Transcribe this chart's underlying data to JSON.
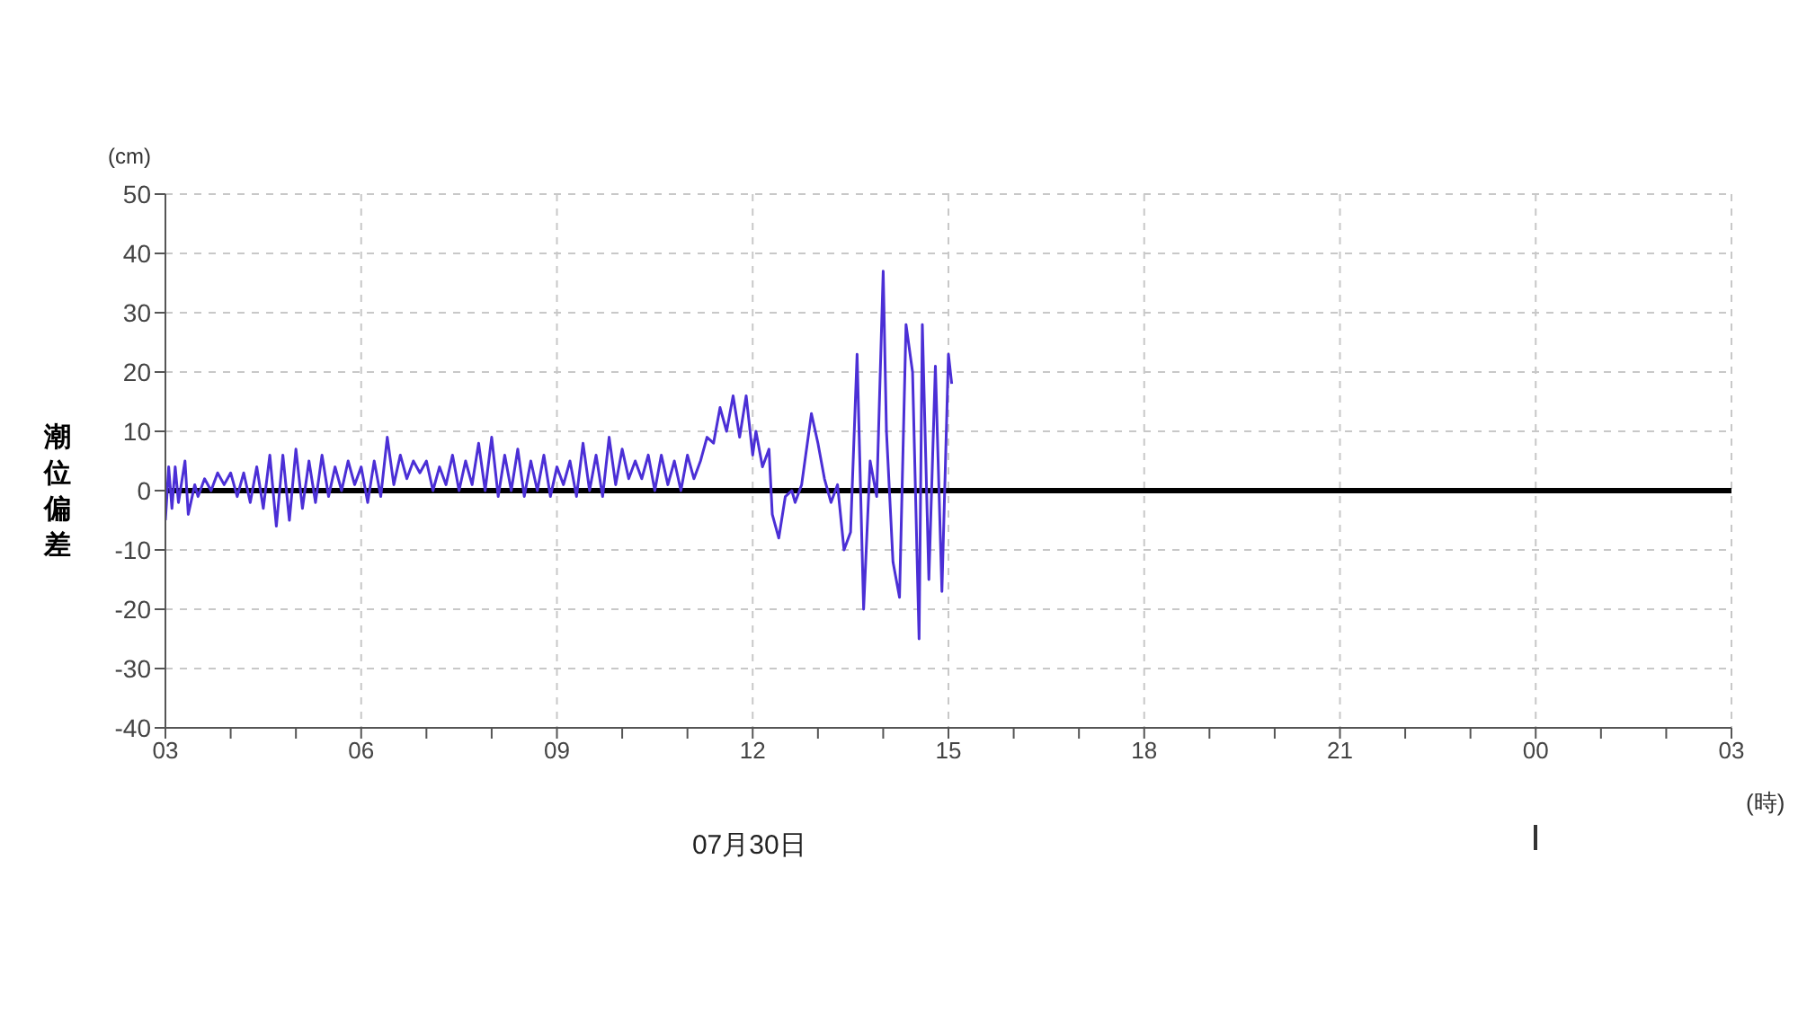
{
  "chart_data": {
    "type": "line",
    "ylabel": "潮位偏差",
    "xlabel": "(時)",
    "annotations": [
      "(cm)",
      "07月30日"
    ],
    "x": [
      3.0,
      3.05,
      3.1,
      3.15,
      3.2,
      3.3,
      3.35,
      3.45,
      3.5,
      3.6,
      3.7,
      3.8,
      3.9,
      4.0,
      4.1,
      4.2,
      4.3,
      4.4,
      4.5,
      4.6,
      4.7,
      4.8,
      4.9,
      5.0,
      5.1,
      5.2,
      5.3,
      5.4,
      5.5,
      5.6,
      5.7,
      5.8,
      5.9,
      6.0,
      6.1,
      6.2,
      6.3,
      6.4,
      6.5,
      6.6,
      6.7,
      6.8,
      6.9,
      7.0,
      7.1,
      7.2,
      7.3,
      7.4,
      7.5,
      7.6,
      7.7,
      7.8,
      7.9,
      8.0,
      8.1,
      8.2,
      8.3,
      8.4,
      8.5,
      8.6,
      8.7,
      8.8,
      8.9,
      9.0,
      9.1,
      9.2,
      9.3,
      9.4,
      9.5,
      9.6,
      9.7,
      9.8,
      9.9,
      10.0,
      10.1,
      10.2,
      10.3,
      10.4,
      10.5,
      10.6,
      10.7,
      10.8,
      10.9,
      11.0,
      11.1,
      11.2,
      11.3,
      11.4,
      11.5,
      11.6,
      11.7,
      11.8,
      11.9,
      12.0,
      12.05,
      12.15,
      12.25,
      12.3,
      12.4,
      12.5,
      12.6,
      12.65,
      12.75,
      12.9,
      13.0,
      13.1,
      13.2,
      13.3,
      13.4,
      13.5,
      13.6,
      13.7,
      13.8,
      13.9,
      14.0,
      14.05,
      14.15,
      14.25,
      14.35,
      14.45,
      14.55,
      14.6,
      14.7,
      14.8,
      14.9,
      15.0,
      15.05
    ],
    "series": [
      {
        "color": "#4b2fd6",
        "values": [
          -5,
          4,
          -3,
          4,
          -2,
          5,
          -4,
          1,
          -1,
          2,
          0,
          3,
          1,
          3,
          -1,
          3,
          -2,
          4,
          -3,
          6,
          -6,
          6,
          -5,
          7,
          -3,
          5,
          -2,
          6,
          -1,
          4,
          0,
          5,
          1,
          4,
          -2,
          5,
          -1,
          9,
          1,
          6,
          2,
          5,
          3,
          5,
          0,
          4,
          1,
          6,
          0,
          5,
          1,
          8,
          0,
          9,
          -1,
          6,
          0,
          7,
          -1,
          5,
          0,
          6,
          -1,
          4,
          1,
          5,
          -1,
          8,
          0,
          6,
          -1,
          9,
          1,
          7,
          2,
          5,
          2,
          6,
          0,
          6,
          1,
          5,
          0,
          6,
          2,
          5,
          9,
          8,
          14,
          10,
          16,
          9,
          16,
          6,
          10,
          4,
          7,
          -4,
          -8,
          -1,
          0,
          -2,
          1,
          13,
          8,
          2,
          -2,
          1,
          -10,
          -7,
          23,
          -20,
          5,
          -1,
          37,
          10,
          -12,
          -18,
          28,
          20,
          -25,
          28,
          -15,
          21,
          -17,
          23,
          18
        ]
      }
    ],
    "xlim": [
      3,
      27
    ],
    "xticks": [
      {
        "value": 3,
        "label": "03"
      },
      {
        "value": 4,
        "label": null
      },
      {
        "value": 5,
        "label": null
      },
      {
        "value": 6,
        "label": "06"
      },
      {
        "value": 7,
        "label": null
      },
      {
        "value": 8,
        "label": null
      },
      {
        "value": 9,
        "label": "09"
      },
      {
        "value": 10,
        "label": null
      },
      {
        "value": 11,
        "label": null
      },
      {
        "value": 12,
        "label": "12"
      },
      {
        "value": 13,
        "label": null
      },
      {
        "value": 14,
        "label": null
      },
      {
        "value": 15,
        "label": "15"
      },
      {
        "value": 16,
        "label": null
      },
      {
        "value": 17,
        "label": null
      },
      {
        "value": 18,
        "label": "18"
      },
      {
        "value": 19,
        "label": null
      },
      {
        "value": 20,
        "label": null
      },
      {
        "value": 21,
        "label": "21"
      },
      {
        "value": 22,
        "label": null
      },
      {
        "value": 23,
        "label": null
      },
      {
        "value": 24,
        "label": "00"
      },
      {
        "value": 25,
        "label": null
      },
      {
        "value": 26,
        "label": null
      },
      {
        "value": 27,
        "label": "03"
      }
    ],
    "ylim": [
      -40,
      50
    ],
    "yticks": [
      -40,
      -30,
      -20,
      -10,
      0,
      10,
      20,
      30,
      40,
      50
    ],
    "grid": true,
    "marker": "none",
    "line_style": "solid",
    "ref_lines": [
      {
        "axis": "y",
        "value": 0,
        "color": "#000000"
      }
    ]
  }
}
